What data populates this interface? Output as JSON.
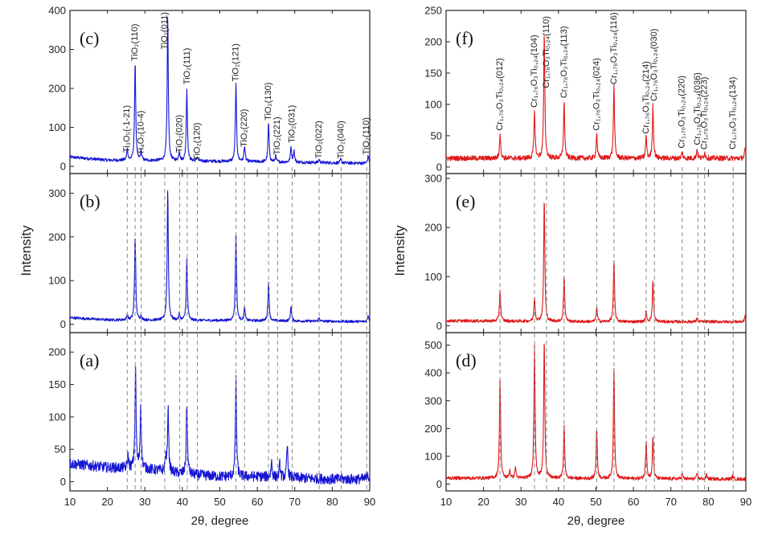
{
  "figure": {
    "ylabel": "Intensity",
    "xlabel": "2θ, degree",
    "x_ticks": [
      10,
      20,
      30,
      40,
      50,
      60,
      70,
      80,
      90
    ]
  },
  "chart_data": [
    {
      "id": "c",
      "type": "line",
      "panel_label": "(c)",
      "color": "#1515d2",
      "xlim": [
        10,
        90
      ],
      "ylim": [
        -8,
        400
      ],
      "y_ticks": [
        0,
        100,
        200,
        300,
        400
      ],
      "baseline": [
        [
          10,
          24
        ],
        [
          20,
          16
        ],
        [
          40,
          14
        ],
        [
          60,
          12
        ],
        [
          90,
          8
        ]
      ],
      "noise": 4,
      "peaks": [
        [
          25.3,
          30
        ],
        [
          27.4,
          255
        ],
        [
          29.0,
          25
        ],
        [
          36.1,
          370
        ],
        [
          39.2,
          25
        ],
        [
          41.2,
          185
        ],
        [
          44.0,
          10
        ],
        [
          54.3,
          200
        ],
        [
          56.6,
          40
        ],
        [
          63.0,
          100
        ],
        [
          64.9,
          15
        ],
        [
          69.0,
          40
        ],
        [
          69.8,
          30
        ],
        [
          76.5,
          8
        ],
        [
          82.3,
          10
        ],
        [
          89.6,
          20
        ]
      ],
      "annotations": [
        {
          "label": "Ti₃O₅(-1-21)",
          "x": 25.3,
          "y": 35
        },
        {
          "label": "Ti₄O₇(10-4)",
          "x": 29.0,
          "y": 30
        },
        {
          "label": "TiO₂(110)",
          "x": 27.4,
          "y": 270
        },
        {
          "label": "TiO₂(011)",
          "x": 35.3,
          "y": 300
        },
        {
          "label": "TiO₂(020)",
          "x": 39.3,
          "y": 35
        },
        {
          "label": "TiO₂(111)",
          "x": 41.3,
          "y": 210
        },
        {
          "label": "TiO₂(120)",
          "x": 44.0,
          "y": 15
        },
        {
          "label": "TiO₂(121)",
          "x": 54.3,
          "y": 218
        },
        {
          "label": "TiO₂(220)",
          "x": 56.6,
          "y": 50
        },
        {
          "label": "TiO₂(130)",
          "x": 63.0,
          "y": 118
        },
        {
          "label": "TiO₂(221)",
          "x": 65.4,
          "y": 30
        },
        {
          "label": "TiO₂(031)",
          "x": 69.3,
          "y": 60
        },
        {
          "label": "TiO₂(022)",
          "x": 76.5,
          "y": 20
        },
        {
          "label": "TiO₂(040)",
          "x": 82.4,
          "y": 20
        },
        {
          "label": "TiO₂(110)",
          "x": 89.2,
          "y": 30
        }
      ]
    },
    {
      "id": "b",
      "type": "line",
      "panel_label": "(b)",
      "color": "#1515d2",
      "xlim": [
        10,
        90
      ],
      "ylim": [
        -10,
        345
      ],
      "y_ticks": [
        0,
        100,
        200,
        300
      ],
      "baseline": [
        [
          10,
          15
        ],
        [
          20,
          10
        ],
        [
          60,
          8
        ],
        [
          90,
          6
        ]
      ],
      "noise": 3,
      "peaks": [
        [
          25.3,
          12
        ],
        [
          27.4,
          195
        ],
        [
          29.0,
          10
        ],
        [
          36.1,
          300
        ],
        [
          39.2,
          15
        ],
        [
          41.2,
          140
        ],
        [
          54.3,
          200
        ],
        [
          56.6,
          30
        ],
        [
          63.0,
          90
        ],
        [
          69.0,
          35
        ],
        [
          76.5,
          8
        ],
        [
          89.6,
          15
        ]
      ],
      "annotations": []
    },
    {
      "id": "a",
      "type": "line",
      "panel_label": "(a)",
      "color": "#1515d2",
      "xlim": [
        10,
        90
      ],
      "ylim": [
        -8,
        230
      ],
      "y_ticks": [
        0,
        50,
        100,
        150,
        200
      ],
      "baseline": [
        [
          10,
          28
        ],
        [
          20,
          22
        ],
        [
          30,
          20
        ],
        [
          40,
          12
        ],
        [
          50,
          8
        ],
        [
          60,
          8
        ],
        [
          80,
          4
        ],
        [
          90,
          4
        ]
      ],
      "noise": 8,
      "peaks": [
        [
          27.5,
          150
        ],
        [
          28.9,
          100
        ],
        [
          25.5,
          20
        ],
        [
          35.5,
          20
        ],
        [
          36.2,
          100
        ],
        [
          41.2,
          110
        ],
        [
          54.3,
          150
        ],
        [
          63.8,
          25
        ],
        [
          66.0,
          20
        ],
        [
          68.0,
          50
        ],
        [
          89.4,
          12
        ]
      ],
      "annotations": []
    },
    {
      "id": "f",
      "type": "line",
      "panel_label": "(f)",
      "color": "#e01818",
      "xlim": [
        10,
        90
      ],
      "ylim": [
        -4,
        250
      ],
      "y_ticks": [
        0,
        50,
        100,
        150,
        200,
        250
      ],
      "baseline": [
        [
          10,
          14
        ],
        [
          50,
          14
        ],
        [
          90,
          14
        ]
      ],
      "noise": 4,
      "peaks": [
        [
          24.4,
          40
        ],
        [
          33.6,
          75
        ],
        [
          36.2,
          200
        ],
        [
          41.5,
          90
        ],
        [
          50.2,
          40
        ],
        [
          54.8,
          115
        ],
        [
          63.4,
          35
        ],
        [
          65.2,
          85
        ],
        [
          73.0,
          10
        ],
        [
          77.0,
          15
        ],
        [
          79.0,
          10
        ],
        [
          89.8,
          15
        ]
      ],
      "annotations": [
        {
          "label": "Cr₁,₇₆O₃Ti₀,₂₄(012)",
          "x": 24.4,
          "y": 58
        },
        {
          "label": "Cr₁,₇₆O₃Ti₀,₂₄(104)",
          "x": 33.6,
          "y": 95
        },
        {
          "label": "Cr₁,₇₆O₃Ti₀,₂₄(110)",
          "x": 36.8,
          "y": 126
        },
        {
          "label": "Cr₁,₇₆O₃Ti₀,₂₄(113)",
          "x": 41.5,
          "y": 110
        },
        {
          "label": "Cr₁,₇₆O₃Ti₀,₂₄(024)",
          "x": 50.2,
          "y": 58
        },
        {
          "label": "Cr₁,₇₆O₃Ti₀,₂₄(116)",
          "x": 54.8,
          "y": 132
        },
        {
          "label": "Cr₁,₇₆O₃Ti₀,₂₄(214)",
          "x": 63.4,
          "y": 53
        },
        {
          "label": "Cr₁,₇₆O₃Ti₀,₂₄(030)",
          "x": 65.6,
          "y": 105
        },
        {
          "label": "Cr₁,₇₆O₃Ti₀,₂₄(220)",
          "x": 73.0,
          "y": 30
        },
        {
          "label": "Cr₁,₇₆O₃Ti₀,₂₄(036)",
          "x": 77.2,
          "y": 35
        },
        {
          "label": "Cr₁,₇₆O₃Ti₀,₂₄(223)",
          "x": 79.0,
          "y": 28
        },
        {
          "label": "Cr₁,₇₆O₃Ti₀,₂₄(134)",
          "x": 86.6,
          "y": 28
        }
      ]
    },
    {
      "id": "e",
      "type": "line",
      "panel_label": "(e)",
      "color": "#e01818",
      "xlim": [
        10,
        90
      ],
      "ylim": [
        -6,
        310
      ],
      "y_ticks": [
        0,
        100,
        200,
        300
      ],
      "baseline": [
        [
          10,
          10
        ],
        [
          50,
          8
        ],
        [
          90,
          8
        ]
      ],
      "noise": 3,
      "peaks": [
        [
          24.4,
          65
        ],
        [
          33.6,
          50
        ],
        [
          36.2,
          250
        ],
        [
          41.5,
          95
        ],
        [
          50.2,
          30
        ],
        [
          54.8,
          125
        ],
        [
          63.4,
          20
        ],
        [
          65.2,
          85
        ],
        [
          77.0,
          8
        ],
        [
          89.8,
          12
        ]
      ],
      "annotations": []
    },
    {
      "id": "d",
      "type": "line",
      "panel_label": "(d)",
      "color": "#e01818",
      "xlim": [
        10,
        90
      ],
      "ylim": [
        -10,
        545
      ],
      "y_ticks": [
        0,
        100,
        200,
        300,
        400,
        500
      ],
      "baseline": [
        [
          10,
          22
        ],
        [
          50,
          20
        ],
        [
          90,
          18
        ]
      ],
      "noise": 6,
      "peaks": [
        [
          24.4,
          360
        ],
        [
          27.0,
          30
        ],
        [
          28.5,
          40
        ],
        [
          33.6,
          480
        ],
        [
          36.2,
          500
        ],
        [
          41.5,
          190
        ],
        [
          50.2,
          180
        ],
        [
          54.8,
          400
        ],
        [
          63.4,
          140
        ],
        [
          65.2,
          150
        ],
        [
          73.0,
          20
        ],
        [
          77.0,
          20
        ],
        [
          79.5,
          15
        ],
        [
          86.5,
          12
        ]
      ],
      "annotations": []
    }
  ]
}
